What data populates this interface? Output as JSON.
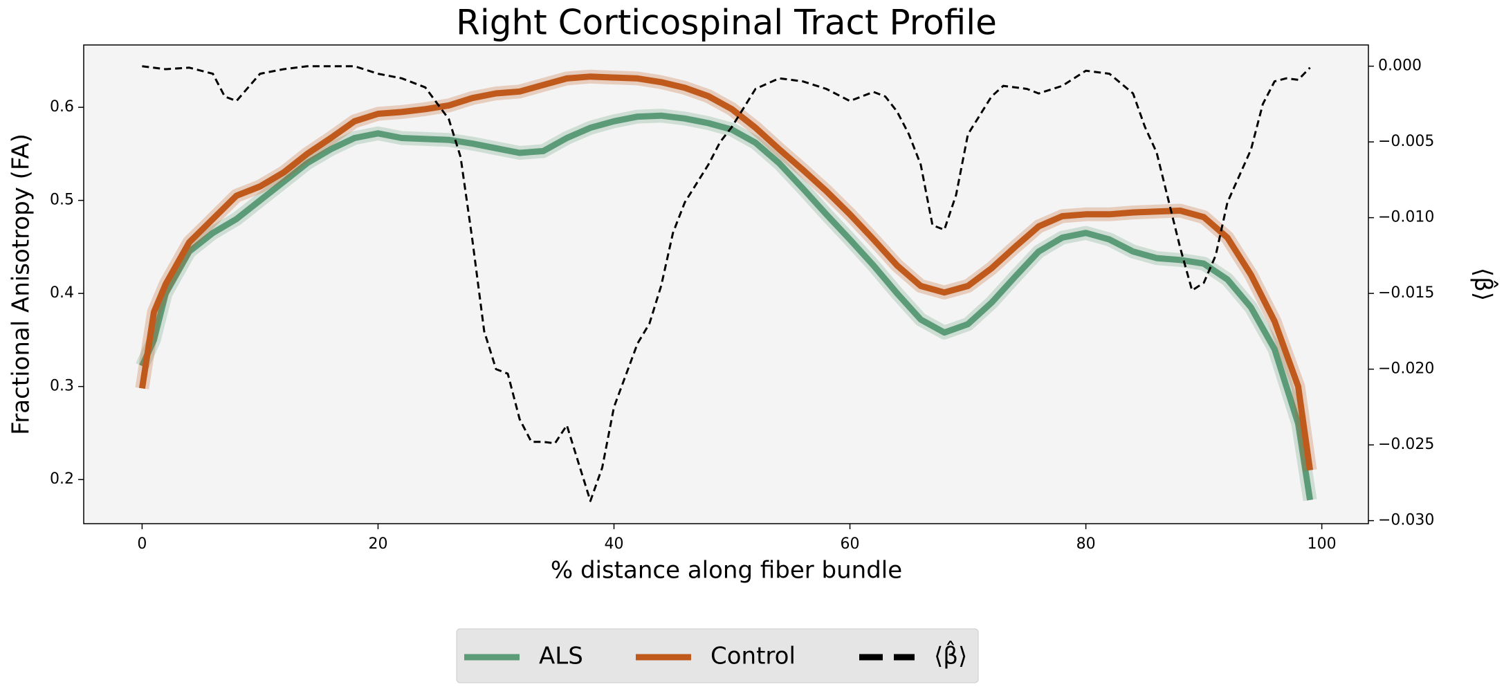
{
  "chart_data": {
    "type": "line",
    "title": "Right Corticospinal Tract Profile",
    "x_label": "% distance along fiber bundle",
    "y_label": "Fractional Anisotropy (FA)",
    "y2_label": "⟨β̂⟩",
    "xlim": [
      -4.95,
      103.95
    ],
    "xticks": [
      0,
      20,
      40,
      60,
      80,
      100
    ],
    "ylim": [
      0.1526,
      0.667
    ],
    "yticks": [
      0.2,
      0.3,
      0.4,
      0.5,
      0.6
    ],
    "y2lim": [
      -0.0302,
      0.0014
    ],
    "y2ticks": [
      {
        "value": -0.03,
        "label": "−0.030"
      },
      {
        "value": -0.025,
        "label": "−0.025"
      },
      {
        "value": -0.02,
        "label": "−0.020"
      },
      {
        "value": -0.015,
        "label": "−0.015"
      },
      {
        "value": -0.01,
        "label": "−0.010"
      },
      {
        "value": -0.005,
        "label": "−0.005"
      },
      {
        "value": 0,
        "label": "0.000"
      }
    ],
    "legend": "bottom",
    "series": [
      {
        "name": "ALS",
        "color": "#5c9b78",
        "x": [
          0,
          1,
          2,
          4,
          6,
          8,
          10,
          12,
          14,
          16,
          18,
          20,
          22,
          24,
          26,
          28,
          30,
          32,
          34,
          36,
          38,
          40,
          42,
          44,
          46,
          48,
          50,
          52,
          54,
          56,
          58,
          60,
          62,
          64,
          66,
          68,
          70,
          72,
          74,
          76,
          78,
          80,
          82,
          84,
          86,
          88,
          90,
          92,
          94,
          96,
          98,
          99
        ],
        "values": [
          0.322,
          0.35,
          0.4,
          0.445,
          0.465,
          0.48,
          0.5,
          0.52,
          0.54,
          0.555,
          0.567,
          0.572,
          0.567,
          0.566,
          0.565,
          0.561,
          0.556,
          0.551,
          0.553,
          0.567,
          0.578,
          0.585,
          0.59,
          0.591,
          0.588,
          0.583,
          0.576,
          0.562,
          0.54,
          0.513,
          0.485,
          0.458,
          0.43,
          0.4,
          0.372,
          0.358,
          0.367,
          0.39,
          0.418,
          0.445,
          0.46,
          0.465,
          0.458,
          0.445,
          0.438,
          0.436,
          0.432,
          0.415,
          0.385,
          0.34,
          0.26,
          0.178
        ]
      },
      {
        "name": "Control",
        "color": "#c0591c",
        "x": [
          0,
          1,
          2,
          4,
          6,
          8,
          10,
          12,
          14,
          16,
          18,
          20,
          22,
          24,
          26,
          28,
          30,
          32,
          34,
          36,
          38,
          40,
          42,
          44,
          46,
          48,
          50,
          52,
          54,
          56,
          58,
          60,
          62,
          64,
          66,
          68,
          70,
          72,
          74,
          76,
          78,
          80,
          82,
          84,
          86,
          88,
          90,
          92,
          94,
          96,
          98,
          99
        ],
        "values": [
          0.298,
          0.38,
          0.41,
          0.455,
          0.48,
          0.505,
          0.515,
          0.53,
          0.55,
          0.567,
          0.585,
          0.593,
          0.595,
          0.598,
          0.602,
          0.61,
          0.615,
          0.617,
          0.624,
          0.631,
          0.633,
          0.632,
          0.631,
          0.627,
          0.621,
          0.612,
          0.598,
          0.578,
          0.555,
          0.533,
          0.51,
          0.485,
          0.458,
          0.43,
          0.408,
          0.401,
          0.408,
          0.427,
          0.45,
          0.472,
          0.483,
          0.485,
          0.485,
          0.487,
          0.488,
          0.489,
          0.482,
          0.46,
          0.42,
          0.37,
          0.3,
          0.21
        ]
      },
      {
        "name": "⟨β̂⟩",
        "color": "#000000",
        "axis": "y2",
        "dashed": true,
        "x": [
          0,
          2,
          4,
          6,
          7,
          8,
          10,
          12,
          14,
          16,
          18,
          20,
          22,
          24,
          26,
          27,
          28,
          29,
          30,
          31,
          32,
          33,
          34,
          35,
          36,
          37,
          38,
          39,
          40,
          42,
          43,
          44,
          45,
          46,
          48,
          49,
          50,
          52,
          54,
          56,
          58,
          60,
          62,
          63,
          64,
          65,
          66,
          67,
          68,
          69,
          70,
          72,
          73,
          75,
          76,
          78,
          80,
          82,
          84,
          85,
          86,
          88,
          89,
          90,
          91,
          92,
          94,
          95,
          96,
          97,
          98,
          99
        ],
        "values": [
          0,
          -0.0002,
          -0.0001,
          -0.0005,
          -0.002,
          -0.0023,
          -0.0005,
          -0.0002,
          0,
          0,
          0,
          -0.0005,
          -0.0008,
          -0.0014,
          -0.0035,
          -0.006,
          -0.0115,
          -0.0175,
          -0.02,
          -0.0203,
          -0.0233,
          -0.0248,
          -0.0248,
          -0.0249,
          -0.0237,
          -0.0262,
          -0.0287,
          -0.0265,
          -0.0225,
          -0.0183,
          -0.017,
          -0.0145,
          -0.011,
          -0.009,
          -0.0065,
          -0.005,
          -0.004,
          -0.0015,
          -0.0008,
          -0.001,
          -0.0015,
          -0.0023,
          -0.0017,
          -0.002,
          -0.003,
          -0.0045,
          -0.0065,
          -0.0105,
          -0.0108,
          -0.0085,
          -0.0045,
          -0.002,
          -0.0013,
          -0.0015,
          -0.0018,
          -0.0013,
          -0.0003,
          -0.0005,
          -0.0018,
          -0.004,
          -0.0057,
          -0.012,
          -0.0148,
          -0.0143,
          -0.0125,
          -0.009,
          -0.0055,
          -0.0025,
          -0.001,
          -0.0008,
          -0.0009,
          -0.0001
        ]
      }
    ]
  }
}
